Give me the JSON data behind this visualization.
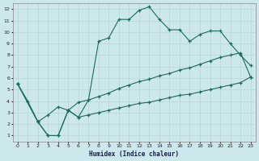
{
  "xlabel": "Humidex (Indice chaleur)",
  "bg_color": "#cde8ec",
  "grid_color": "#b8d4d8",
  "line_color": "#1a6b5a",
  "xlim": [
    -0.5,
    23.5
  ],
  "ylim": [
    0.5,
    12.5
  ],
  "xticks": [
    0,
    1,
    2,
    3,
    4,
    5,
    6,
    7,
    8,
    9,
    10,
    11,
    12,
    13,
    14,
    15,
    16,
    17,
    18,
    19,
    20,
    21,
    22,
    23
  ],
  "yticks": [
    1,
    2,
    3,
    4,
    5,
    6,
    7,
    8,
    9,
    10,
    11,
    12
  ],
  "line1_x": [
    0,
    1,
    2,
    3,
    4,
    5,
    6,
    7,
    8,
    9,
    10,
    11,
    12,
    13,
    14,
    15,
    16,
    17,
    18,
    19,
    20,
    21,
    22,
    23
  ],
  "line1_y": [
    5.5,
    4.0,
    2.2,
    1.0,
    1.0,
    3.2,
    2.6,
    4.1,
    9.2,
    9.5,
    11.1,
    11.1,
    11.9,
    12.2,
    11.1,
    10.2,
    10.2,
    9.2,
    9.8,
    10.1,
    10.1,
    9.0,
    8.0,
    7.1
  ],
  "line2_x": [
    0,
    2,
    3,
    4,
    5,
    6,
    7,
    8,
    9,
    10,
    11,
    12,
    13,
    14,
    15,
    16,
    17,
    18,
    19,
    20,
    21,
    22,
    23
  ],
  "line2_y": [
    5.5,
    2.2,
    2.8,
    3.5,
    3.2,
    3.9,
    4.1,
    4.4,
    4.7,
    5.1,
    5.4,
    5.7,
    5.9,
    6.2,
    6.4,
    6.7,
    6.9,
    7.2,
    7.5,
    7.8,
    8.0,
    8.2,
    6.1
  ],
  "line3_x": [
    0,
    2,
    3,
    4,
    5,
    6,
    7,
    8,
    9,
    10,
    11,
    12,
    13,
    14,
    15,
    16,
    17,
    18,
    19,
    20,
    21,
    22,
    23
  ],
  "line3_y": [
    5.5,
    2.2,
    1.0,
    1.0,
    3.2,
    2.6,
    2.8,
    3.0,
    3.2,
    3.4,
    3.6,
    3.8,
    3.9,
    4.1,
    4.3,
    4.5,
    4.6,
    4.8,
    5.0,
    5.2,
    5.4,
    5.6,
    6.1
  ]
}
